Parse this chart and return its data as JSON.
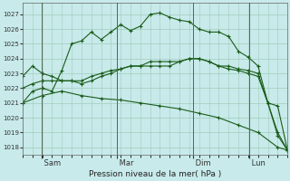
{
  "bg_color": "#c8eaea",
  "grid_color": "#a0ccbb",
  "line_color": "#1a5c1a",
  "xlabel_text": "Pression niveau de la mer( hPa )",
  "ylim": [
    1017.5,
    1027.8
  ],
  "yticks": [
    1018,
    1019,
    1020,
    1021,
    1022,
    1023,
    1024,
    1025,
    1026,
    1027
  ],
  "xtick_labels": [
    " Sam",
    " Mar",
    " Dim",
    " Lun"
  ],
  "xtick_positions": [
    0.071,
    0.357,
    0.643,
    0.857
  ],
  "vline_positions": [
    0.071,
    0.357,
    0.643,
    0.857
  ],
  "line1_x": [
    0,
    1,
    2,
    3,
    4,
    5,
    6,
    7,
    8,
    9,
    10,
    11,
    12,
    13,
    14,
    15,
    16,
    17,
    18,
    19,
    20,
    21,
    22,
    23,
    24,
    25,
    26,
    27
  ],
  "line1_y": [
    1021.0,
    1021.8,
    1022.0,
    1021.8,
    1023.2,
    1025.0,
    1025.2,
    1025.8,
    1025.3,
    1025.8,
    1026.3,
    1025.9,
    1026.2,
    1027.0,
    1027.1,
    1026.8,
    1026.6,
    1026.5,
    1026.0,
    1025.8,
    1025.8,
    1025.5,
    1024.5,
    1024.1,
    1023.5,
    1021.0,
    1020.8,
    1017.8
  ],
  "line2_x": [
    0,
    1,
    2,
    3,
    4,
    5,
    6,
    7,
    8,
    9,
    10,
    11,
    12,
    13,
    14,
    15,
    16,
    17,
    18,
    19,
    20,
    21,
    22,
    23,
    24,
    25,
    26,
    27
  ],
  "line2_y": [
    1022.8,
    1023.5,
    1023.0,
    1022.8,
    1022.5,
    1022.5,
    1022.3,
    1022.5,
    1022.8,
    1023.0,
    1023.3,
    1023.5,
    1023.5,
    1023.8,
    1023.8,
    1023.8,
    1023.8,
    1024.0,
    1024.0,
    1023.8,
    1023.5,
    1023.5,
    1023.3,
    1023.2,
    1023.0,
    1021.0,
    1019.0,
    1017.8
  ],
  "line3_x": [
    0,
    1,
    2,
    3,
    4,
    5,
    6,
    7,
    8,
    9,
    10,
    11,
    12,
    13,
    14,
    15,
    16,
    17,
    18,
    19,
    20,
    21,
    22,
    23,
    24,
    25,
    26,
    27
  ],
  "line3_y": [
    1022.0,
    1022.3,
    1022.5,
    1022.5,
    1022.5,
    1022.5,
    1022.5,
    1022.8,
    1023.0,
    1023.2,
    1023.3,
    1023.5,
    1023.5,
    1023.5,
    1023.5,
    1023.5,
    1023.8,
    1024.0,
    1024.0,
    1023.8,
    1023.5,
    1023.3,
    1023.2,
    1023.0,
    1022.8,
    1021.0,
    1018.8,
    1017.8
  ],
  "line4_x": [
    0,
    2,
    4,
    6,
    8,
    10,
    12,
    14,
    16,
    18,
    20,
    22,
    24,
    26,
    27
  ],
  "line4_y": [
    1021.0,
    1021.5,
    1021.8,
    1021.5,
    1021.3,
    1021.2,
    1021.0,
    1020.8,
    1020.6,
    1020.3,
    1020.0,
    1019.5,
    1019.0,
    1018.0,
    1017.8
  ],
  "n_points": 28
}
